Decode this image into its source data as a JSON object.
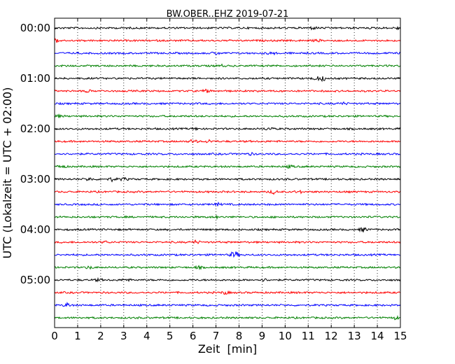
{
  "chart_data": {
    "type": "line",
    "title": "BW.OBER..EHZ 2019-07-21",
    "xlabel": "Zeit  [min]",
    "ylabel": "UTC (Lokalzeit = UTC + 02:00)",
    "xlim": [
      0,
      15
    ],
    "x_ticks": [
      0,
      1,
      2,
      3,
      4,
      5,
      6,
      7,
      8,
      9,
      10,
      11,
      12,
      13,
      14,
      15
    ],
    "x_tick_labels": [
      "0",
      "1",
      "2",
      "3",
      "4",
      "5",
      "6",
      "7",
      "8",
      "9",
      "10",
      "11",
      "12",
      "13",
      "14",
      "15"
    ],
    "y_tick_labels": [
      "00:00",
      "01:00",
      "02:00",
      "03:00",
      "04:00",
      "05:00"
    ],
    "trace_minutes": 15,
    "grid": "vertical dotted lines at each minute",
    "colors": [
      "#000000",
      "#ff0000",
      "#0000ff",
      "#008000"
    ],
    "series": [
      {
        "start": "00:00",
        "color": "#000000",
        "events": [
          {
            "t": 11.2,
            "amp": 1.6
          },
          {
            "t": 14.95,
            "amp": 2.2
          }
        ]
      },
      {
        "start": "00:15",
        "color": "#ff0000",
        "events": [
          {
            "t": 0.1,
            "amp": 2.4
          },
          {
            "t": 11.4,
            "amp": 1.3
          }
        ]
      },
      {
        "start": "00:30",
        "color": "#0000ff",
        "events": [
          {
            "t": 7.0,
            "amp": 1.8
          },
          {
            "t": 9.4,
            "amp": 1.5
          }
        ]
      },
      {
        "start": "00:45",
        "color": "#008000",
        "events": [
          {
            "t": 7.2,
            "amp": 1.4
          }
        ]
      },
      {
        "start": "01:00",
        "color": "#000000",
        "events": [
          {
            "t": 11.6,
            "amp": 3.2
          },
          {
            "t": 11.3,
            "amp": 1.6
          }
        ]
      },
      {
        "start": "01:15",
        "color": "#ff0000",
        "events": [
          {
            "t": 6.6,
            "amp": 1.8
          },
          {
            "t": 1.4,
            "amp": 1.2
          }
        ]
      },
      {
        "start": "01:30",
        "color": "#0000ff",
        "events": [
          {
            "t": 12.5,
            "amp": 1.5
          }
        ]
      },
      {
        "start": "01:45",
        "color": "#008000",
        "events": [
          {
            "t": 0.2,
            "amp": 1.3
          }
        ]
      },
      {
        "start": "02:00",
        "color": "#000000",
        "events": [
          {
            "t": 9.3,
            "amp": 1.8
          },
          {
            "t": 6.1,
            "amp": 1.2
          }
        ]
      },
      {
        "start": "02:15",
        "color": "#ff0000",
        "events": [
          {
            "t": 6.0,
            "amp": 2.2
          },
          {
            "t": 6.7,
            "amp": 1.8
          }
        ]
      },
      {
        "start": "02:30",
        "color": "#0000ff",
        "events": [
          {
            "t": 8.5,
            "amp": 1.2
          }
        ]
      },
      {
        "start": "02:45",
        "color": "#008000",
        "events": [
          {
            "t": 0.3,
            "amp": 2.0
          },
          {
            "t": 10.2,
            "amp": 1.8
          }
        ]
      },
      {
        "start": "03:00",
        "color": "#000000",
        "events": [
          {
            "t": 1.5,
            "amp": 2.0
          },
          {
            "t": 2.5,
            "amp": 2.2
          },
          {
            "t": 3.0,
            "amp": 1.6
          }
        ]
      },
      {
        "start": "03:15",
        "color": "#ff0000",
        "events": [
          {
            "t": 9.5,
            "amp": 2.2
          },
          {
            "t": 10.6,
            "amp": 1.4
          }
        ]
      },
      {
        "start": "03:30",
        "color": "#0000ff",
        "events": [
          {
            "t": 7.1,
            "amp": 1.5
          }
        ]
      },
      {
        "start": "03:45",
        "color": "#008000",
        "events": [
          {
            "t": 7.0,
            "amp": 1.2
          }
        ]
      },
      {
        "start": "04:00",
        "color": "#000000",
        "events": [
          {
            "t": 13.4,
            "amp": 3.0
          }
        ]
      },
      {
        "start": "04:15",
        "color": "#ff0000",
        "events": [
          {
            "t": 6.1,
            "amp": 2.0
          },
          {
            "t": 2.2,
            "amp": 1.3
          }
        ]
      },
      {
        "start": "04:30",
        "color": "#0000ff",
        "events": [
          {
            "t": 7.8,
            "amp": 5.0
          }
        ]
      },
      {
        "start": "04:45",
        "color": "#008000",
        "events": [
          {
            "t": 1.5,
            "amp": 1.6
          },
          {
            "t": 6.2,
            "amp": 1.5
          }
        ]
      },
      {
        "start": "05:00",
        "color": "#000000",
        "events": [
          {
            "t": 1.9,
            "amp": 1.4
          },
          {
            "t": 3.1,
            "amp": 1.4
          },
          {
            "t": 9.1,
            "amp": 1.3
          }
        ]
      },
      {
        "start": "05:15",
        "color": "#ff0000",
        "events": [
          {
            "t": 7.4,
            "amp": 1.8
          }
        ]
      },
      {
        "start": "05:30",
        "color": "#0000ff",
        "events": [
          {
            "t": 0.55,
            "amp": 2.4
          }
        ]
      },
      {
        "start": "05:45",
        "color": "#008000",
        "events": [
          {
            "t": 14.8,
            "amp": 1.8
          }
        ]
      }
    ]
  }
}
